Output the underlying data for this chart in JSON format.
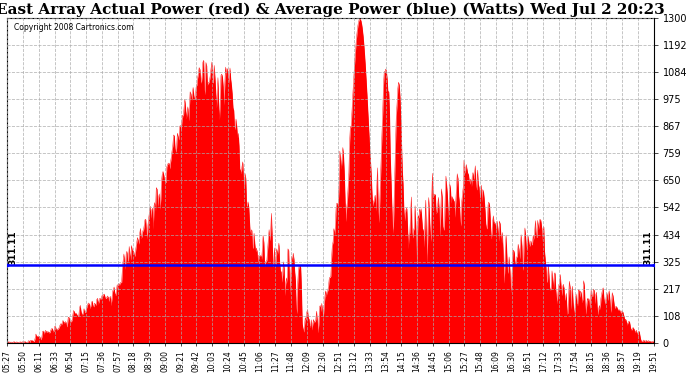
{
  "title": "East Array Actual Power (red) & Average Power (blue) (Watts) Wed Jul 2 20:23",
  "copyright": "Copyright 2008 Cartronics.com",
  "ymax": 1300.5,
  "ymin": 0.0,
  "yticks": [
    0.0,
    108.4,
    216.8,
    325.1,
    433.5,
    541.9,
    650.3,
    758.6,
    867.0,
    975.4,
    1083.8,
    1192.2,
    1300.5
  ],
  "average_power": 311.11,
  "area_color": "#ff0000",
  "avg_line_color": "#0000ff",
  "background_color": "#ffffff",
  "plot_bg_color": "#ffffff",
  "title_fontsize": 11,
  "xtick_labels": [
    "05:27",
    "05:50",
    "06:11",
    "06:33",
    "06:54",
    "07:15",
    "07:36",
    "07:57",
    "08:18",
    "08:39",
    "09:00",
    "09:21",
    "09:42",
    "10:03",
    "10:24",
    "10:45",
    "11:06",
    "11:27",
    "11:48",
    "12:09",
    "12:30",
    "12:51",
    "13:12",
    "13:33",
    "13:54",
    "14:15",
    "14:36",
    "14:45",
    "15:06",
    "15:27",
    "15:48",
    "16:09",
    "16:30",
    "16:51",
    "17:12",
    "17:33",
    "17:54",
    "18:15",
    "18:36",
    "18:57",
    "19:19",
    "19:51"
  ]
}
